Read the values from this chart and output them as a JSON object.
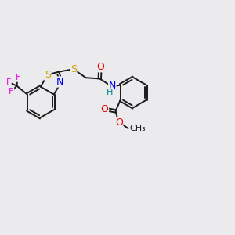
{
  "bg_color": "#ebebee",
  "bond_color": "#1a1a1a",
  "bond_width": 1.4,
  "colors": {
    "S": "#c8a000",
    "N": "#0000ee",
    "O": "#ee0000",
    "F": "#ee00ee",
    "H": "#008888",
    "C": "#1a1a1a"
  },
  "figsize": [
    3.0,
    3.0
  ],
  "dpi": 100,
  "xlim": [
    0,
    12
  ],
  "ylim": [
    0,
    10
  ]
}
